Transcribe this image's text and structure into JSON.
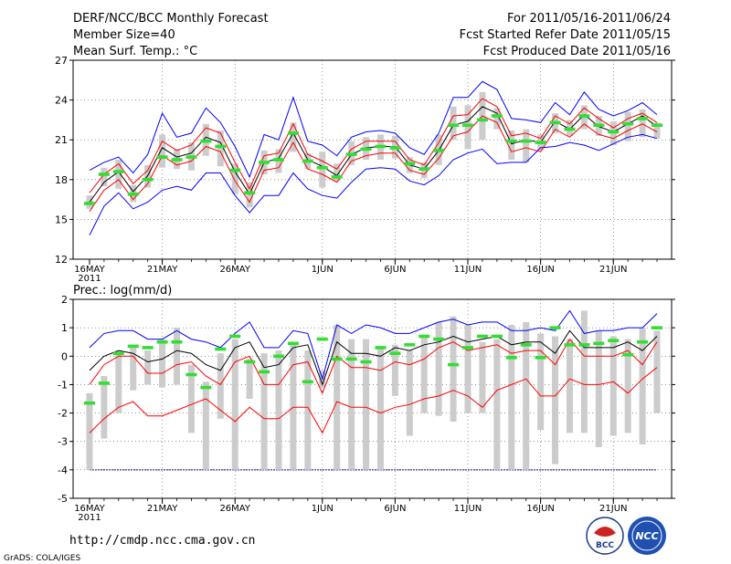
{
  "header": {
    "title": "DERF/NCC/BCC Monthly Forecast",
    "member_size": "Member Size=40",
    "variable": "Mean Surf. Temp.: °C",
    "period": "For 2011/05/16-2011/06/24",
    "started": "Fcst Started Refer Date 2011/05/15",
    "produced": "Fcst Produced Date 2011/05/16"
  },
  "footer": {
    "url": "http://cmdp.ncc.cma.gov.cn",
    "grads": "GrADS: COLA/IGES",
    "logo_bcc": "BCC",
    "logo_ncc": "NCC"
  },
  "colors": {
    "outer": "#0000ff",
    "inner": "#ff0000",
    "mean": "#000000",
    "obs": "#33dd33",
    "box": "#cccccc"
  },
  "chart_data": [
    {
      "type": "line",
      "title": "Mean Surf. Temp.: °C",
      "ylim": [
        12,
        27
      ],
      "yticks": [
        12,
        15,
        18,
        21,
        24,
        27
      ],
      "xlabels": [
        {
          "day": 0,
          "label": "16MAY",
          "sub": "2011"
        },
        {
          "day": 5,
          "label": "21MAY"
        },
        {
          "day": 10,
          "label": "26MAY"
        },
        {
          "day": 16,
          "label": "1JUN"
        },
        {
          "day": 21,
          "label": "6JUN"
        },
        {
          "day": 26,
          "label": "11JUN"
        },
        {
          "day": 31,
          "label": "16JUN"
        },
        {
          "day": 36,
          "label": "21JUN"
        }
      ],
      "ndays": 40,
      "series": [
        {
          "name": "max",
          "color": "outer",
          "values": [
            13.8,
            16.0,
            17.0,
            15.8,
            16.3,
            17.2,
            17.5,
            17.2,
            18.5,
            18.5,
            16.8,
            15.5,
            16.8,
            16.8,
            18.5,
            17.3,
            16.8,
            16.6,
            17.8,
            18.8,
            18.9,
            18.8,
            17.9,
            17.6,
            18.3,
            19.5,
            20.0,
            20.3,
            19.2,
            19.3,
            19.3,
            20.4,
            20.5,
            20.8,
            20.6,
            20.2,
            20.7,
            21.2,
            21.4,
            21.1
          ]
        },
        {
          "name": "upper",
          "color": "outer",
          "values": [
            18.7,
            19.3,
            19.7,
            18.5,
            19.9,
            23.0,
            21.2,
            21.5,
            23.4,
            22.3,
            20.5,
            18.2,
            21.4,
            21.0,
            24.2,
            20.9,
            20.6,
            19.8,
            21.2,
            21.6,
            21.7,
            21.5,
            20.4,
            19.9,
            21.5,
            24.2,
            24.2,
            25.4,
            24.8,
            22.6,
            22.5,
            22.3,
            23.8,
            22.9,
            24.6,
            23.3,
            22.8,
            23.2,
            23.8,
            22.9
          ]
        },
        {
          "name": "inner-high",
          "color": "inner",
          "values": [
            17.0,
            18.4,
            19.2,
            17.7,
            18.7,
            20.9,
            20.2,
            20.6,
            21.9,
            21.5,
            19.3,
            17.3,
            19.8,
            20.0,
            22.2,
            19.9,
            19.4,
            18.8,
            20.3,
            20.9,
            20.9,
            20.9,
            19.5,
            19.1,
            20.8,
            22.8,
            22.9,
            24.1,
            23.5,
            21.3,
            21.5,
            21.1,
            22.8,
            22.2,
            23.4,
            22.6,
            21.9,
            22.6,
            23.0,
            22.3
          ]
        },
        {
          "name": "mean",
          "color": "mean",
          "values": [
            16.3,
            17.8,
            18.6,
            17.1,
            18.3,
            20.4,
            19.7,
            20.0,
            21.2,
            20.8,
            18.6,
            16.9,
            19.3,
            19.6,
            21.5,
            19.5,
            19.0,
            18.3,
            19.9,
            20.4,
            20.5,
            20.5,
            19.1,
            18.8,
            20.2,
            22.1,
            22.4,
            23.5,
            23.0,
            20.7,
            21.0,
            20.8,
            22.4,
            21.8,
            22.9,
            22.0,
            21.6,
            22.2,
            22.8,
            22.0
          ]
        },
        {
          "name": "inner-low",
          "color": "inner",
          "values": [
            15.6,
            17.2,
            18.0,
            16.5,
            17.7,
            19.8,
            19.1,
            19.4,
            20.5,
            20.1,
            17.9,
            16.3,
            18.7,
            18.9,
            20.8,
            18.8,
            18.4,
            17.8,
            19.4,
            19.8,
            20.0,
            20.0,
            18.7,
            18.4,
            19.6,
            21.3,
            21.6,
            22.8,
            22.3,
            20.1,
            20.4,
            20.1,
            21.8,
            21.2,
            22.2,
            21.4,
            21.1,
            21.7,
            22.2,
            21.6
          ]
        }
      ],
      "boxes": [
        [
          15.8,
          16.8
        ],
        [
          17.5,
          18.9
        ],
        [
          17.3,
          19.5
        ],
        [
          16.3,
          17.6
        ],
        [
          17.4,
          19.1
        ],
        [
          18.9,
          21.4
        ],
        [
          18.8,
          20.3
        ],
        [
          18.7,
          20.8
        ],
        [
          19.8,
          22.2
        ],
        [
          19.0,
          21.7
        ],
        [
          16.9,
          19.2
        ],
        [
          15.9,
          17.8
        ],
        [
          18.4,
          20.2
        ],
        [
          18.5,
          20.3
        ],
        [
          20.1,
          22.3
        ],
        [
          18.8,
          20.0
        ],
        [
          17.4,
          20.1
        ],
        [
          17.9,
          19.2
        ],
        [
          19.1,
          20.9
        ],
        [
          19.5,
          21.2
        ],
        [
          19.5,
          21.4
        ],
        [
          19.6,
          21.3
        ],
        [
          18.5,
          19.7
        ],
        [
          18.1,
          19.3
        ],
        [
          19.1,
          21.4
        ],
        [
          21.0,
          23.5
        ],
        [
          20.3,
          23.6
        ],
        [
          21.0,
          24.6
        ],
        [
          21.8,
          23.4
        ],
        [
          19.5,
          21.7
        ],
        [
          19.3,
          21.8
        ],
        [
          20.2,
          21.4
        ],
        [
          21.5,
          23.0
        ],
        [
          21.3,
          22.5
        ],
        [
          21.8,
          23.6
        ],
        [
          21.3,
          22.8
        ],
        [
          20.6,
          22.4
        ],
        [
          20.9,
          23.1
        ],
        [
          21.2,
          23.3
        ],
        [
          21.1,
          22.3
        ]
      ],
      "obs": [
        16.2,
        18.4,
        18.6,
        16.9,
        18.0,
        19.7,
        19.5,
        19.7,
        20.9,
        20.5,
        18.7,
        17.0,
        19.3,
        19.5,
        21.5,
        19.4,
        18.9,
        18.2,
        19.9,
        20.3,
        20.5,
        20.4,
        19.2,
        18.8,
        20.2,
        22.1,
        22.1,
        22.5,
        22.8,
        20.9,
        20.9,
        20.8,
        22.3,
        21.8,
        22.8,
        22.1,
        21.6,
        22.2,
        22.6,
        22.1
      ]
    },
    {
      "type": "line",
      "title": "Prec.: log(mm/d)",
      "ylim": [
        -5,
        2
      ],
      "yticks": [
        -5,
        -4,
        -3,
        -2,
        -1,
        0,
        1,
        2
      ],
      "ndays": 40,
      "baseline": -4,
      "series": [
        {
          "name": "upper",
          "color": "outer",
          "values": [
            0.3,
            0.8,
            0.9,
            0.9,
            0.6,
            0.6,
            0.9,
            0.6,
            0.5,
            0.3,
            0.8,
            1.2,
            0.3,
            0.3,
            0.9,
            0.8,
            -0.8,
            1.1,
            0.8,
            1.1,
            1.0,
            0.8,
            0.8,
            1.0,
            1.2,
            1.3,
            1.1,
            1.2,
            1.2,
            0.9,
            0.9,
            1.0,
            0.9,
            1.6,
            0.8,
            0.9,
            0.9,
            1.0,
            1.0,
            1.5
          ]
        },
        {
          "name": "inner-high",
          "color": "inner",
          "values": [
            -1.0,
            -0.3,
            0.0,
            0.0,
            -0.6,
            -0.6,
            -0.3,
            -0.2,
            -0.7,
            -1.0,
            -0.2,
            0.0,
            -1.0,
            -1.0,
            -0.3,
            -0.2,
            -1.3,
            0.0,
            -0.4,
            -0.4,
            -0.5,
            -0.2,
            -0.3,
            -0.1,
            0.3,
            0.5,
            0.2,
            0.3,
            0.4,
            0.1,
            0.2,
            0.2,
            -0.3,
            0.6,
            0.0,
            0.0,
            0.0,
            0.2,
            -0.3,
            0.5
          ]
        },
        {
          "name": "mean",
          "color": "mean",
          "values": [
            -0.5,
            0.0,
            0.2,
            0.1,
            -0.2,
            -0.1,
            0.2,
            0.1,
            -0.3,
            -0.5,
            0.3,
            0.5,
            -0.4,
            -0.3,
            0.3,
            0.4,
            -1.0,
            0.5,
            0.1,
            0.1,
            0.0,
            0.3,
            0.2,
            0.4,
            0.5,
            0.7,
            0.5,
            0.6,
            0.7,
            0.4,
            0.5,
            0.5,
            0.1,
            0.9,
            0.3,
            0.3,
            0.3,
            0.5,
            0.2,
            0.7
          ]
        },
        {
          "name": "lower",
          "color": "inner",
          "values": [
            -2.7,
            -2.2,
            -1.8,
            -1.6,
            -2.1,
            -2.1,
            -1.9,
            -1.7,
            -1.5,
            -1.9,
            -2.3,
            -1.8,
            -2.2,
            -2.2,
            -1.8,
            -1.8,
            -2.7,
            -1.6,
            -1.8,
            -1.8,
            -2.0,
            -1.8,
            -1.7,
            -1.5,
            -1.4,
            -1.2,
            -1.4,
            -1.8,
            -1.2,
            -1.0,
            -0.8,
            -1.4,
            -1.4,
            -0.8,
            -1.0,
            -1.0,
            -0.9,
            -1.3,
            -0.8,
            -0.4
          ]
        }
      ],
      "boxes": [
        [
          -4.0,
          -1.3
        ],
        [
          -2.9,
          -0.7
        ],
        [
          -2.0,
          0.1
        ],
        [
          -1.2,
          0.3
        ],
        [
          -1.0,
          0.2
        ],
        [
          -1.1,
          0.6
        ],
        [
          -1.0,
          1.0
        ],
        [
          -2.7,
          -0.3
        ],
        [
          -4.0,
          -0.9
        ],
        [
          -2.2,
          0.1
        ],
        [
          -4.0,
          0.6
        ],
        [
          -1.5,
          -0.1
        ],
        [
          -4.0,
          0.1
        ],
        [
          -4.0,
          0.2
        ],
        [
          -4.0,
          0.4
        ],
        [
          -4.0,
          0.2
        ],
        [
          -1.1,
          -0.5
        ],
        [
          -4.0,
          1.1
        ],
        [
          -4.0,
          0.6
        ],
        [
          -4.0,
          0.6
        ],
        [
          -4.0,
          0.3
        ],
        [
          -1.4,
          0.4
        ],
        [
          -2.8,
          0.2
        ],
        [
          -2.0,
          0.7
        ],
        [
          -2.1,
          1.2
        ],
        [
          -2.3,
          1.4
        ],
        [
          -2.0,
          1.1
        ],
        [
          -2.0,
          0.5
        ],
        [
          -4.0,
          0.6
        ],
        [
          -4.0,
          1.1
        ],
        [
          -4.0,
          1.2
        ],
        [
          -2.6,
          0.8
        ],
        [
          -3.8,
          0.7
        ],
        [
          -2.7,
          0.6
        ],
        [
          -2.7,
          1.6
        ],
        [
          -3.2,
          0.9
        ],
        [
          -2.8,
          0.7
        ],
        [
          -2.7,
          0.6
        ],
        [
          -3.1,
          1.0
        ],
        [
          -2.0,
          0.9
        ]
      ],
      "obs": [
        -1.65,
        -0.95,
        0.1,
        0.35,
        0.3,
        0.5,
        0.5,
        -0.65,
        -1.1,
        0.25,
        0.7,
        -0.2,
        -0.55,
        0.0,
        0.45,
        -0.9,
        0.6,
        -0.1,
        -0.1,
        -0.2,
        0.3,
        0.1,
        0.4,
        0.7,
        0.6,
        -0.3,
        0.3,
        0.7,
        0.7,
        -0.05,
        0.4,
        -0.05,
        1.0,
        0.4,
        0.4,
        0.45,
        0.55,
        0.05,
        0.5,
        1.0
      ]
    }
  ]
}
